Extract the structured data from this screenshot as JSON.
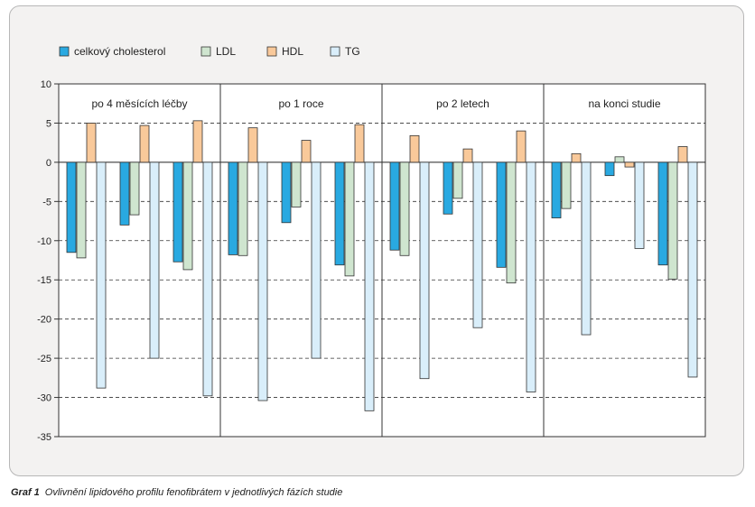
{
  "chart_data": {
    "type": "bar",
    "title": "",
    "xlabel": "",
    "ylabel": "",
    "ylim": [
      -35,
      10
    ],
    "yticks": [
      10,
      5,
      0,
      -5,
      -10,
      -15,
      -20,
      -25,
      -30,
      -35
    ],
    "grid": true,
    "legend_position": "top-left",
    "colors": {
      "celkovy_cholesterol": "#29a9e1",
      "LDL": "#cfe5cf",
      "HDL": "#f9c99a",
      "TG": "#d9eefa",
      "bar_stroke": "#333333",
      "panel_bg": "#f3f2f1",
      "plot_bg": "#ffffff"
    },
    "series": [
      {
        "name": "celkový cholesterol"
      },
      {
        "name": "LDL"
      },
      {
        "name": "HDL"
      },
      {
        "name": "TG"
      }
    ],
    "groups": [
      {
        "label": "po 4 měsících léčby",
        "clusters": [
          [
            -11.5,
            -12.2,
            5.0,
            -28.8
          ],
          [
            -8.0,
            -6.7,
            4.7,
            -25.0
          ],
          [
            -12.7,
            -13.7,
            5.3,
            -29.8
          ]
        ]
      },
      {
        "label": "po 1 roce",
        "clusters": [
          [
            -11.8,
            -11.9,
            4.4,
            -30.4
          ],
          [
            -7.7,
            -5.7,
            2.8,
            -25.0
          ],
          [
            -13.1,
            -14.5,
            4.8,
            -31.7
          ]
        ]
      },
      {
        "label": "po 2 letech",
        "clusters": [
          [
            -11.2,
            -11.9,
            3.4,
            -27.6
          ],
          [
            -6.6,
            -4.6,
            1.7,
            -21.1
          ],
          [
            -13.4,
            -15.4,
            4.0,
            -29.3
          ]
        ]
      },
      {
        "label": "na konci studie",
        "clusters": [
          [
            -7.1,
            -5.9,
            1.1,
            -22.0
          ],
          [
            -1.7,
            0.7,
            -0.6,
            -11.0
          ],
          [
            -13.1,
            -14.9,
            2.0,
            -27.4
          ]
        ]
      }
    ]
  },
  "caption": {
    "lead": "Graf 1",
    "text": "Ovlivnění lipidového profilu fenofibrátem v jednotlivých fázích studie"
  }
}
